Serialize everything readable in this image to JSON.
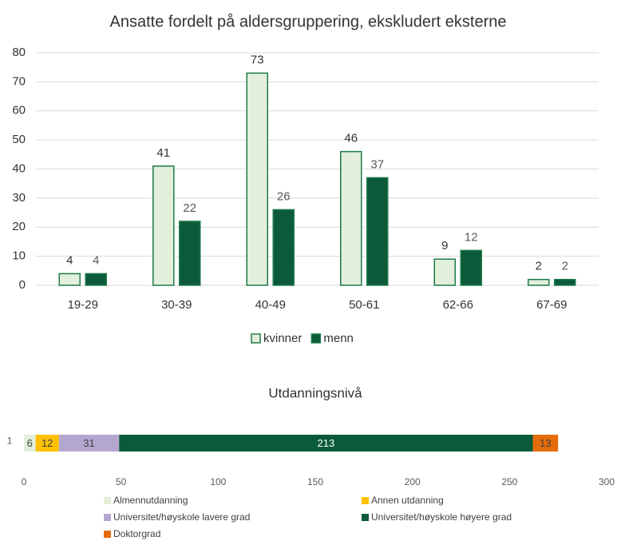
{
  "chart_data": [
    {
      "type": "bar",
      "title": "Ansatte fordelt på aldersgruppering, ekskludert eksterne",
      "categories": [
        "19-29",
        "30-39",
        "40-49",
        "50-61",
        "62-66",
        "67-69"
      ],
      "series": [
        {
          "name": "kvinner",
          "color": "#e2efda",
          "values": [
            4,
            41,
            73,
            46,
            9,
            2
          ]
        },
        {
          "name": "menn",
          "color": "#0b5a3a",
          "values": [
            4,
            22,
            26,
            37,
            12,
            2
          ]
        }
      ],
      "ylim": [
        0,
        80
      ],
      "yticks": [
        0,
        10,
        20,
        30,
        40,
        50,
        60,
        70,
        80
      ],
      "grid": true,
      "legend": "bottom"
    },
    {
      "type": "stacked_barh",
      "title": "Utdanningsnivå",
      "categories": [
        "1"
      ],
      "series": [
        {
          "name": "Almennutdanning",
          "color": "#e2efda",
          "values": [
            6
          ]
        },
        {
          "name": "Annen utdanning",
          "color": "#ffc000",
          "values": [
            12
          ]
        },
        {
          "name": "Universitet/høyskole lavere grad",
          "color": "#b4a7cf",
          "values": [
            31
          ]
        },
        {
          "name": "Universitet/høyskole høyere grad",
          "color": "#0b5a3a",
          "values": [
            213
          ]
        },
        {
          "name": "Doktorgrad",
          "color": "#e46c0a",
          "values": [
            13
          ]
        }
      ],
      "xlim": [
        0,
        300
      ],
      "xticks": [
        0,
        50,
        100,
        150,
        200,
        250,
        300
      ],
      "grid": false,
      "legend": "bottom"
    }
  ]
}
